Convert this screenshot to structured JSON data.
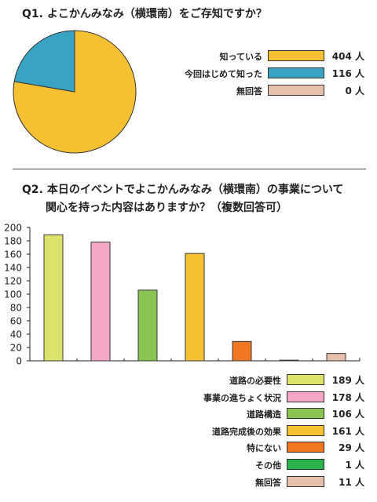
{
  "q1": {
    "title": "Q1. よこかんみなみ（横環南）をご存知ですか？",
    "unit": "人",
    "chart_data": {
      "type": "pie",
      "categories": [
        "知っている",
        "今回はじめて知った",
        "無回答"
      ],
      "values": [
        404,
        116,
        0
      ],
      "colors": [
        "#f6c033",
        "#3aa3c4",
        "#e7c0ab"
      ],
      "value_labels": [
        "404 人",
        "116 人",
        "0 人"
      ]
    }
  },
  "q2": {
    "title": "Q2. 本日のイベントでよこかんみなみ（横環南）の事業について",
    "subtitle": "関心を持った内容はありますか？（複数回答可）",
    "chart_data": {
      "type": "bar",
      "categories": [
        "道路の必要性",
        "事業の進ちょく状況",
        "道路構造",
        "道路完成後の効果",
        "特にない",
        "その他",
        "無回答"
      ],
      "values": [
        189,
        178,
        106,
        161,
        29,
        1,
        11
      ],
      "colors": [
        "#dde36a",
        "#f4a6c6",
        "#8cc453",
        "#f6c033",
        "#ef7722",
        "#2bb24c",
        "#e7c0ab"
      ],
      "value_labels": [
        "189 人",
        "178 人",
        "106 人",
        "161 人",
        "29 人",
        "1 人",
        "11 人"
      ],
      "ylim": [
        0,
        200
      ],
      "yticks": [
        "0",
        "20",
        "40",
        "60",
        "80",
        "100",
        "120",
        "140",
        "160",
        "180",
        "200"
      ]
    }
  }
}
